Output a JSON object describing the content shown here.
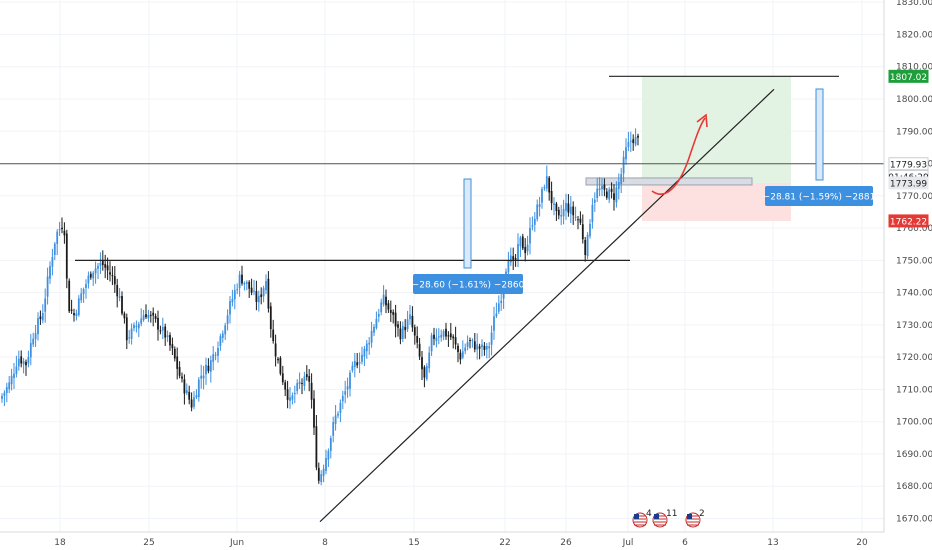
{
  "chart_data": {
    "type": "candlestick",
    "y_axis": {
      "ticks": [
        "1830.00",
        "1820.00",
        "1810.00",
        "1800.00",
        "1790.00",
        "1780.00",
        "1770.00",
        "1760.00",
        "1750.00",
        "1740.00",
        "1730.00",
        "1720.00",
        "1710.00",
        "1700.00",
        "1690.00",
        "1680.00",
        "1670.00"
      ],
      "range": [
        1666,
        1834
      ]
    },
    "x_axis": {
      "ticks": [
        "18",
        "25",
        "Jun",
        "8",
        "15",
        "22",
        "26",
        "Jul",
        "6",
        "13",
        "20"
      ]
    },
    "price_tags": [
      {
        "label": "1807.02",
        "value": 1807.02,
        "color": "#1e9e3a",
        "text_color": "#ffffff"
      },
      {
        "label": "1779.93",
        "value": 1779.93,
        "color": "#ffffff",
        "text_color": "#222222"
      },
      {
        "label": "01:46:29",
        "value": 1776.0,
        "color": "#ffffff",
        "text_color": "#222222"
      },
      {
        "label": "1773.99",
        "value": 1773.99,
        "color": "#e6e9ee",
        "text_color": "#222222"
      },
      {
        "label": "1762.22",
        "value": 1762.22,
        "color": "#e53935",
        "text_color": "#ffffff"
      }
    ],
    "measure_labels": [
      {
        "text": "−28.60 (−1.61%) −2860"
      },
      {
        "text": "−28.81 (−1.59%) −2881"
      }
    ],
    "event_badges": [
      {
        "count": "4"
      },
      {
        "count": "11"
      },
      {
        "count": "2"
      }
    ],
    "levels": {
      "resistance_top": 1807.02,
      "current": 1779.93,
      "support": 1750.0,
      "entry": 1773.99,
      "stop": 1762.22
    },
    "trendline": {
      "from": {
        "x": "8",
        "y": 1669
      },
      "to": {
        "x": "13",
        "y": 1803
      }
    },
    "colors": {
      "up": "#3d8fe0",
      "down": "#1a1a1a",
      "profit_zone": "#e3f3e3",
      "loss_zone": "#fde0e0",
      "arrow": "#e53935",
      "measure": "#3d8fe0"
    }
  }
}
